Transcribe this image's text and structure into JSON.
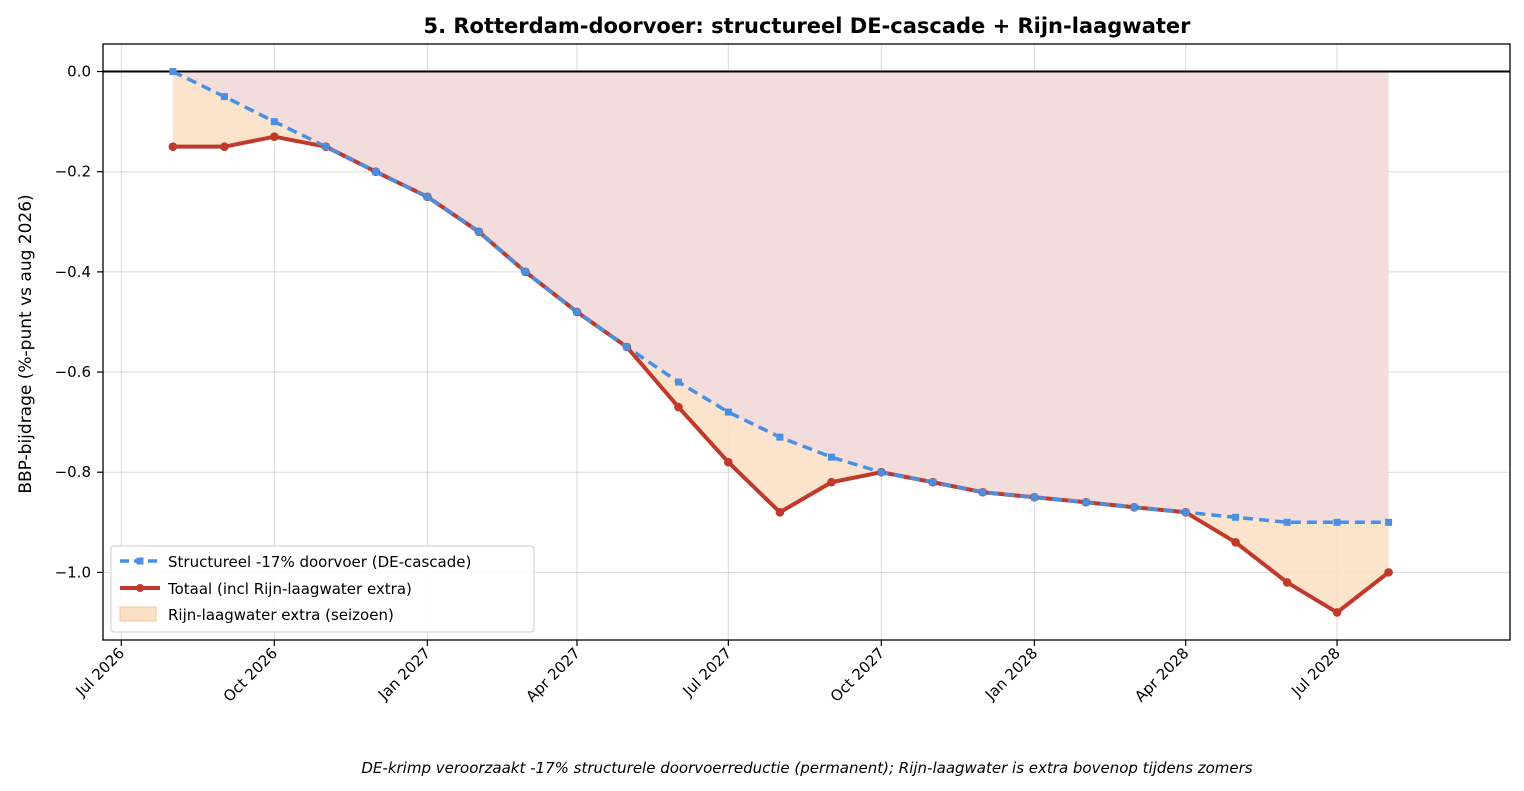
{
  "chart_data": {
    "type": "line",
    "title": "5. Rotterdam-doorvoer: structureel DE-cascade + Rijn-laagwater",
    "ylabel": "BBP-bijdrage (%-punt vs aug 2026)",
    "xlabel": "",
    "caption": "DE-krimp veroorzaakt -17% structurele doorvoerreductie (permanent); Rijn-laagwater is extra bovenop tijdens zomers",
    "x": [
      "2026-08",
      "2026-09",
      "2026-10",
      "2026-11",
      "2026-12",
      "2027-01",
      "2027-02",
      "2027-03",
      "2027-04",
      "2027-05",
      "2027-06",
      "2027-07",
      "2027-08",
      "2027-09",
      "2027-10",
      "2027-11",
      "2027-12",
      "2028-01",
      "2028-02",
      "2028-03",
      "2028-04",
      "2028-05",
      "2028-06",
      "2028-07",
      "2028-08"
    ],
    "series": [
      {
        "name": "Structureel -17% doorvoer (DE-cascade)",
        "color": "#4a90e2",
        "style": "dashed",
        "marker": "square",
        "values": [
          0.0,
          -0.05,
          -0.1,
          -0.15,
          -0.2,
          -0.25,
          -0.32,
          -0.4,
          -0.48,
          -0.55,
          -0.62,
          -0.68,
          -0.73,
          -0.77,
          -0.8,
          -0.82,
          -0.84,
          -0.85,
          -0.86,
          -0.87,
          -0.88,
          -0.89,
          -0.9,
          -0.9,
          -0.9
        ]
      },
      {
        "name": "Totaal (incl Rijn-laagwater extra)",
        "color": "#c0392b",
        "style": "solid",
        "marker": "circle",
        "values": [
          -0.15,
          -0.15,
          -0.13,
          -0.15,
          -0.2,
          -0.25,
          -0.32,
          -0.4,
          -0.48,
          -0.55,
          -0.67,
          -0.78,
          -0.88,
          -0.82,
          -0.8,
          -0.82,
          -0.84,
          -0.85,
          -0.86,
          -0.87,
          -0.88,
          -0.94,
          -1.02,
          -1.08,
          -1.0
        ]
      }
    ],
    "fill_legend": {
      "name": "Rijn-laagwater extra (seizoen)",
      "color": "#fbe0c6"
    },
    "structural_fill_color": "#f3dcdc",
    "x_ticks": [
      {
        "date": "2026-07",
        "label": "Jul 2026"
      },
      {
        "date": "2026-10",
        "label": "Oct 2026"
      },
      {
        "date": "2027-01",
        "label": "Jan 2027"
      },
      {
        "date": "2027-04",
        "label": "Apr 2027"
      },
      {
        "date": "2027-07",
        "label": "Jul 2027"
      },
      {
        "date": "2027-10",
        "label": "Oct 2027"
      },
      {
        "date": "2028-01",
        "label": "Jan 2028"
      },
      {
        "date": "2028-04",
        "label": "Apr 2028"
      },
      {
        "date": "2028-07",
        "label": "Jul 2028"
      }
    ],
    "y_ticks": [
      0.0,
      -0.2,
      -0.4,
      -0.6,
      -0.8,
      -1.0
    ],
    "xlim": [
      "2026-06-20",
      "2028-10-13"
    ],
    "ylim": [
      -1.135,
      0.055
    ],
    "grid": true,
    "legend_position": "lower-left"
  }
}
